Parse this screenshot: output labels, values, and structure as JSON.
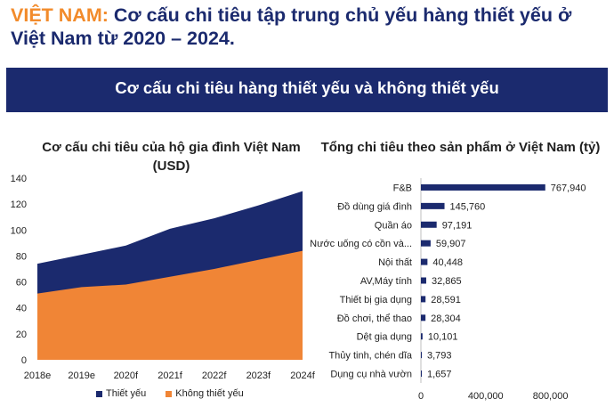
{
  "header": {
    "title_accent": "VIỆT NAM:",
    "title_rest": " Cơ cấu chi tiêu tập trung chủ yếu hàng thiết yếu ở Việt Nam từ 2020 – 2024.",
    "banner": "Cơ cấu chi tiêu hàng thiết yếu và không thiết yếu"
  },
  "colors": {
    "navy": "#1b2a6e",
    "orange": "#f08536",
    "accent": "#f28b2b"
  },
  "chart_data": [
    {
      "type": "area",
      "stacked": true,
      "title": "Cơ cấu chi tiêu của hộ gia đình Việt Nam (USD)",
      "x": [
        "2018e",
        "2019e",
        "2020f",
        "2021f",
        "2022f",
        "2023f",
        "2024f"
      ],
      "ylim": [
        0,
        140
      ],
      "yticks": [
        0,
        20,
        40,
        60,
        80,
        100,
        120,
        140
      ],
      "legend_position": "bottom",
      "series": [
        {
          "name": "Không thiết yếu",
          "color": "#f08536",
          "values": [
            51,
            56,
            58,
            64,
            70,
            77,
            84
          ]
        },
        {
          "name": "Thiết yếu",
          "color": "#1b2a6e",
          "values": [
            23,
            25,
            30,
            37,
            39,
            42,
            46
          ]
        }
      ]
    },
    {
      "type": "bar",
      "orientation": "horizontal",
      "title": "Tổng chi tiêu theo sản phẩm ở Việt Nam (tỷ)",
      "categories": [
        "F&B",
        "Đồ dùng giá đình",
        "Quần áo",
        "Nước uống có cồn và...",
        "Nội thất",
        "AV,Máy tính",
        "Thiết bị gia dụng",
        "Đồ chơi, thể thao",
        "Dệt gia dụng",
        "Thủy tinh, chén dĩa",
        "Dụng cụ nhà vườn"
      ],
      "values": [
        767940,
        145760,
        97191,
        59907,
        40448,
        32865,
        28591,
        28304,
        10101,
        3793,
        1657
      ],
      "value_labels": [
        "767,940",
        "145,760",
        "97,191",
        "59,907",
        "40,448",
        "32,865",
        "28,591",
        "28,304",
        "10,101",
        "3,793",
        "1,657"
      ],
      "xlim": [
        0,
        1000000
      ],
      "xticks": [
        0,
        400000,
        800000
      ],
      "xtick_labels": [
        "0",
        "400,000",
        "800,000"
      ],
      "color": "#1b2a6e"
    }
  ]
}
